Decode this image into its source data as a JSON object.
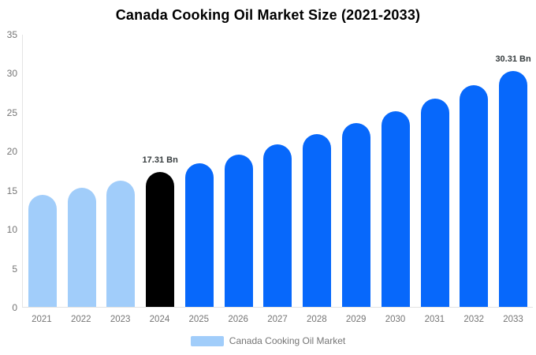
{
  "chart_data": {
    "type": "bar",
    "title": "Canada Cooking Oil Market Size (2021-2033)",
    "categories": [
      "2021",
      "2022",
      "2023",
      "2024",
      "2025",
      "2026",
      "2027",
      "2028",
      "2029",
      "2030",
      "2031",
      "2032",
      "2033"
    ],
    "values": [
      14.36,
      15.28,
      16.27,
      17.31,
      18.42,
      19.61,
      20.87,
      22.21,
      23.63,
      25.15,
      26.77,
      28.48,
      30.31
    ],
    "xlabel": "",
    "ylabel": "",
    "ylim": [
      0,
      35
    ],
    "yticks": [
      0,
      5,
      10,
      15,
      20,
      25,
      30,
      35
    ],
    "grid": false,
    "legend_label": "Canada Cooking Oil Market",
    "legend_position": "bottom",
    "bar_colors": [
      "#A1CDFA",
      "#A1CDFA",
      "#A1CDFA",
      "#000000",
      "#0768FB",
      "#0768FB",
      "#0768FB",
      "#0768FB",
      "#0768FB",
      "#0768FB",
      "#0768FB",
      "#0768FB",
      "#0768FB"
    ],
    "annotations": [
      {
        "index": 3,
        "text": "17.31 Bn"
      },
      {
        "index": 12,
        "text": "30.31 Bn"
      }
    ],
    "colors": {
      "historical": "#A1CDFA",
      "highlight": "#000000",
      "forecast": "#0768FB",
      "axis_line": "#E3E3E3",
      "tick_label": "#757575",
      "annotation_text": "#373D3F",
      "title_text": "#000000",
      "background": "#FFFFFF"
    }
  }
}
